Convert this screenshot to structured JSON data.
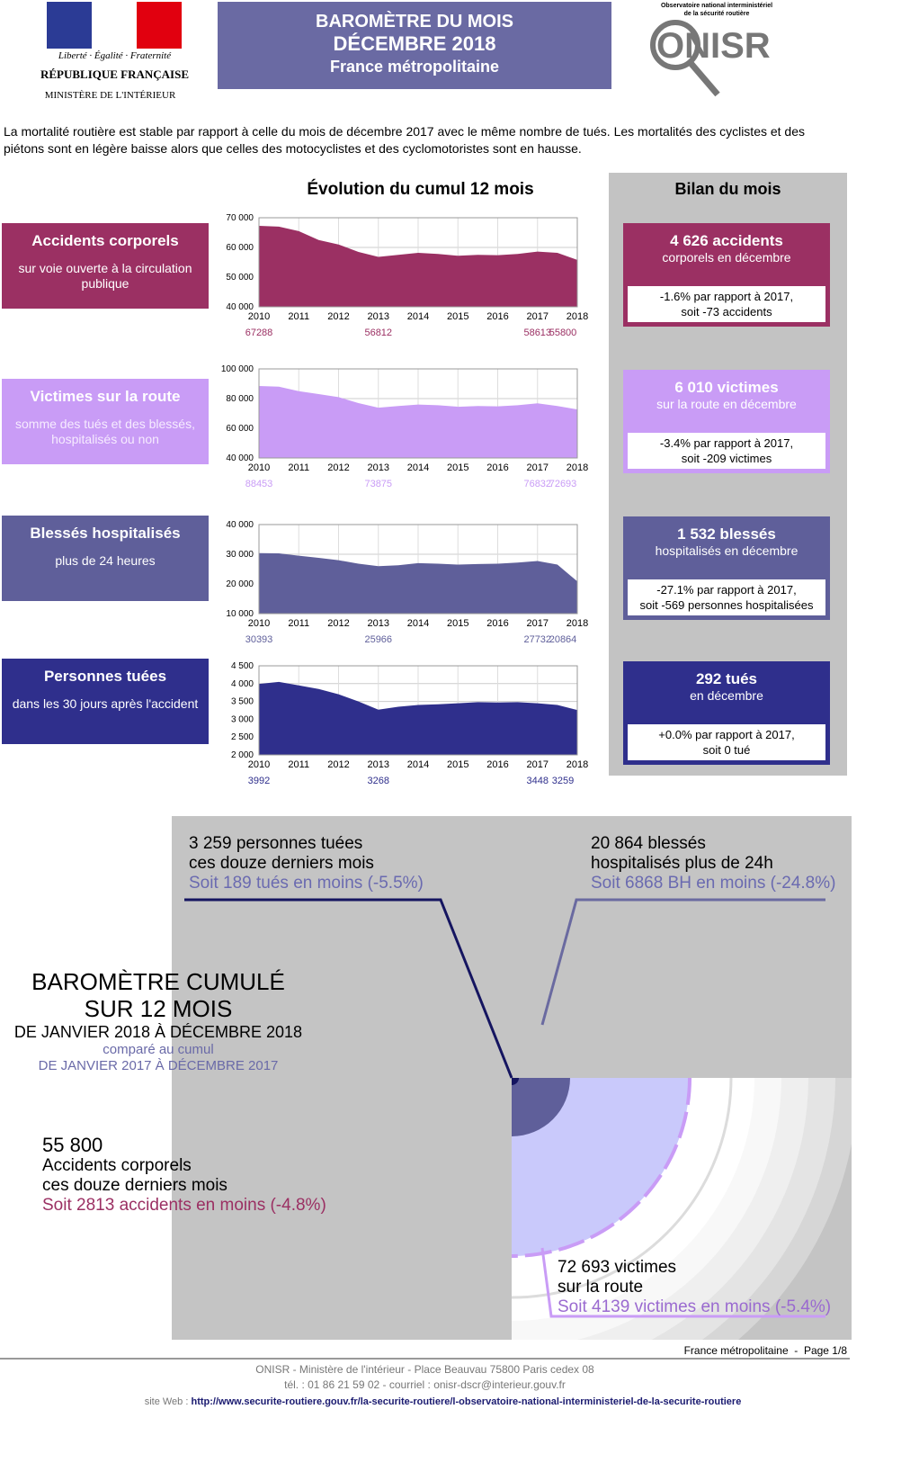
{
  "header": {
    "republic": {
      "motto": "Liberté · Égalité · Fraternité",
      "name": "RÉPUBLIQUE FRANÇAISE",
      "ministry": "MINISTÈRE DE L'INTÉRIEUR"
    },
    "title_lines": [
      "BAROMÈTRE DU MOIS",
      "DÉCEMBRE 2018",
      "France métropolitaine"
    ],
    "onisr": {
      "caption_lines": [
        "Observatoire national interministériel",
        "de la sécurité routière"
      ],
      "logo": "ONISR"
    }
  },
  "intro": "La mortalité routière est stable par rapport à celle du mois de décembre 2017 avec le même nombre de tués. Les mortalités des cyclistes et des piétons sont en légère baisse alors que celles des motocyclistes et des cyclomotoristes sont en hausse.",
  "evolution_title": "Évolution du cumul 12 mois",
  "indicators": [
    {
      "label": "Accidents corporels",
      "sublabel": "sur voie ouverte à la circulation publique",
      "chart": {
        "type": "area",
        "color": "#9b3063",
        "grid": true,
        "x": [
          2010,
          2010.5,
          2011,
          2011.5,
          2012,
          2012.5,
          2013,
          2013.5,
          2014,
          2014.5,
          2015,
          2015.5,
          2016,
          2016.5,
          2017,
          2017.5,
          2018
        ],
        "values": [
          67288,
          67000,
          65500,
          62500,
          61000,
          58500,
          56812,
          57500,
          58200,
          57800,
          57200,
          57500,
          57400,
          57800,
          58613,
          58200,
          55800
        ],
        "xlim": [
          2010,
          2018
        ],
        "xticks": [
          2010,
          2011,
          2012,
          2013,
          2014,
          2015,
          2016,
          2017,
          2018
        ],
        "ylim": [
          40000,
          70000
        ],
        "yticks": [
          {
            "value": 40000,
            "label": "40 000"
          },
          {
            "value": 50000,
            "label": "50 000"
          },
          {
            "value": 60000,
            "label": "60 000"
          },
          {
            "value": 70000,
            "label": "70 000"
          }
        ],
        "point_labels": [
          {
            "x": 2010,
            "value": 67288
          },
          {
            "x": 2013,
            "value": 56812
          },
          {
            "x": 2017,
            "value": 58613
          },
          {
            "x": 2018,
            "value": 55800
          }
        ]
      }
    },
    {
      "label": "Victimes sur la route",
      "sublabel": "somme des tués et des blessés, hospitalisés ou non",
      "chart": {
        "type": "area",
        "color": "#c99cf6",
        "grid": true,
        "x": [
          2010,
          2010.5,
          2011,
          2011.5,
          2012,
          2012.5,
          2013,
          2013.5,
          2014,
          2014.5,
          2015,
          2015.5,
          2016,
          2016.5,
          2017,
          2017.5,
          2018
        ],
        "values": [
          88453,
          88000,
          85000,
          83000,
          81000,
          77000,
          73875,
          75000,
          76000,
          75500,
          74500,
          75000,
          74800,
          75500,
          76832,
          75000,
          72693
        ],
        "xlim": [
          2010,
          2018
        ],
        "xticks": [
          2010,
          2011,
          2012,
          2013,
          2014,
          2015,
          2016,
          2017,
          2018
        ],
        "ylim": [
          40000,
          100000
        ],
        "yticks": [
          {
            "value": 40000,
            "label": "40 000"
          },
          {
            "value": 60000,
            "label": "60 000"
          },
          {
            "value": 80000,
            "label": "80 000"
          },
          {
            "value": 100000,
            "label": "100 000"
          }
        ],
        "point_labels": [
          {
            "x": 2010,
            "value": 88453
          },
          {
            "x": 2013,
            "value": 73875
          },
          {
            "x": 2017,
            "value": 76832
          },
          {
            "x": 2018,
            "value": 72693
          }
        ]
      }
    },
    {
      "label": "Blessés hospitalisés",
      "sublabel": "plus de 24 heures",
      "chart": {
        "type": "area",
        "color": "#5f5f9a",
        "grid": true,
        "x": [
          2010,
          2010.5,
          2011,
          2011.5,
          2012,
          2012.5,
          2013,
          2013.5,
          2014,
          2014.5,
          2015,
          2015.5,
          2016,
          2016.5,
          2017,
          2017.5,
          2018
        ],
        "values": [
          30393,
          30300,
          29500,
          28800,
          28000,
          26800,
          25966,
          26300,
          27000,
          26800,
          26500,
          26700,
          26800,
          27200,
          27732,
          26500,
          20864
        ],
        "xlim": [
          2010,
          2018
        ],
        "xticks": [
          2010,
          2011,
          2012,
          2013,
          2014,
          2015,
          2016,
          2017,
          2018
        ],
        "ylim": [
          10000,
          40000
        ],
        "yticks": [
          {
            "value": 10000,
            "label": "10 000"
          },
          {
            "value": 20000,
            "label": "20 000"
          },
          {
            "value": 30000,
            "label": "30 000"
          },
          {
            "value": 40000,
            "label": "40 000"
          }
        ],
        "point_labels": [
          {
            "x": 2010,
            "value": 30393
          },
          {
            "x": 2013,
            "value": 25966
          },
          {
            "x": 2017,
            "value": 27732
          },
          {
            "x": 2018,
            "value": 20864
          }
        ]
      }
    },
    {
      "label": "Personnes tuées",
      "sublabel": "dans les 30 jours après l'accident",
      "chart": {
        "type": "area",
        "color": "#2f2f8c",
        "grid": true,
        "x": [
          2010,
          2010.5,
          2011,
          2011.5,
          2012,
          2012.5,
          2013,
          2013.5,
          2014,
          2014.5,
          2015,
          2015.5,
          2016,
          2016.5,
          2017,
          2017.5,
          2018
        ],
        "values": [
          3992,
          4050,
          3950,
          3850,
          3700,
          3500,
          3268,
          3350,
          3400,
          3420,
          3450,
          3480,
          3470,
          3480,
          3448,
          3400,
          3259
        ],
        "xlim": [
          2010,
          2018
        ],
        "xticks": [
          2010,
          2011,
          2012,
          2013,
          2014,
          2015,
          2016,
          2017,
          2018
        ],
        "ylim": [
          2000,
          4500
        ],
        "yticks": [
          {
            "value": 2000,
            "label": "2 000"
          },
          {
            "value": 2500,
            "label": "2 500"
          },
          {
            "value": 3000,
            "label": "3 000"
          },
          {
            "value": 3500,
            "label": "3 500"
          },
          {
            "value": 4000,
            "label": "4 000"
          },
          {
            "value": 4500,
            "label": "4 500"
          }
        ],
        "point_labels": [
          {
            "x": 2010,
            "value": 3992
          },
          {
            "x": 2013,
            "value": 3268
          },
          {
            "x": 2017,
            "value": 3448
          },
          {
            "x": 2018,
            "value": 3259
          }
        ]
      }
    }
  ],
  "bilan": {
    "title": "Bilan du mois",
    "items": [
      {
        "headline": "4 626 accidents",
        "sub": "corporels en décembre",
        "change": [
          "-1.6% par rapport à 2017,",
          "soit -73 accidents"
        ]
      },
      {
        "headline": "6 010 victimes",
        "sub": "sur la route en décembre",
        "change": [
          "-3.4% par rapport à 2017,",
          "soit -209 victimes"
        ]
      },
      {
        "headline": "1 532 blessés",
        "sub": "hospitalisés en décembre",
        "change": [
          "-27.1% par rapport à 2017,",
          "soit -569 personnes hospitalisées"
        ]
      },
      {
        "headline": "292 tués",
        "sub": "en décembre",
        "change": [
          "+0.0% par rapport à 2017,",
          "soit 0 tué"
        ]
      }
    ]
  },
  "cumul": {
    "title_lines": [
      "BAROMÈTRE CUMULÉ",
      "SUR 12 MOIS"
    ],
    "period": "DE JANVIER 2018 À DÉCEMBRE 2018",
    "compare_lines": [
      "comparé au cumul",
      "DE JANVIER 2017 À DÉCEMBRE 2017"
    ],
    "tues": [
      "3 259 personnes tuées",
      "ces douze derniers mois",
      "Soit 189 tués en moins (-5.5%)"
    ],
    "blesses": [
      "20 864 blessés",
      "hospitalisés plus de 24h",
      "Soit 6868 BH en moins (-24.8%)"
    ],
    "accidents": [
      "55 800",
      "Accidents corporels",
      "ces douze derniers mois",
      "Soit 2813 accidents en moins (-4.8%)"
    ],
    "victimes": [
      "72 693 victimes",
      "sur la route",
      "Soit 4139 victimes en moins (-5.4%)"
    ]
  },
  "footer": {
    "page": "France métropolitaine  -  Page 1/8",
    "address": "ONISR - Ministère de l'intérieur - Place Beauvau 75800 Paris cedex 08",
    "contact": "tél. : 01 86 21 59 02 - courriel : onisr-dscr@interieur.gouv.fr",
    "site_label": "site Web :",
    "site_url": "http://www.securite-routiere.gouv.fr/la-securite-routiere/l-observatoire-national-interministeriel-de-la-securite-routiere"
  }
}
